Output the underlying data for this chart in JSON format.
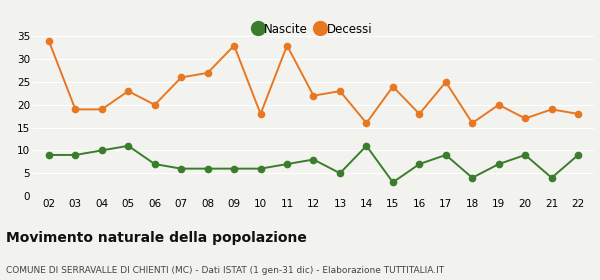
{
  "years": [
    2,
    3,
    4,
    5,
    6,
    7,
    8,
    9,
    10,
    11,
    12,
    13,
    14,
    15,
    16,
    17,
    18,
    19,
    20,
    21,
    22
  ],
  "nascite": [
    9,
    9,
    10,
    11,
    7,
    6,
    6,
    6,
    6,
    7,
    8,
    5,
    11,
    3,
    7,
    9,
    4,
    7,
    9,
    4,
    9
  ],
  "decessi": [
    34,
    19,
    19,
    23,
    20,
    26,
    27,
    33,
    18,
    33,
    22,
    23,
    16,
    24,
    18,
    25,
    16,
    20,
    17,
    19,
    18
  ],
  "nascite_color": "#3a7d2c",
  "decessi_color": "#e87722",
  "background_color": "#f2f2ee",
  "grid_color": "#ffffff",
  "ylim": [
    0,
    35
  ],
  "yticks": [
    0,
    5,
    10,
    15,
    20,
    25,
    30,
    35
  ],
  "title": "Movimento naturale della popolazione",
  "subtitle": "COMUNE DI SERRAVALLE DI CHIENTI (MC) - Dati ISTAT (1 gen-31 dic) - Elaborazione TUTTITALIA.IT",
  "legend_nascite": "Nascite",
  "legend_decessi": "Decessi",
  "title_fontsize": 10,
  "subtitle_fontsize": 6.5,
  "axis_fontsize": 7.5,
  "marker_size": 4.5,
  "legend_marker_size": 10
}
